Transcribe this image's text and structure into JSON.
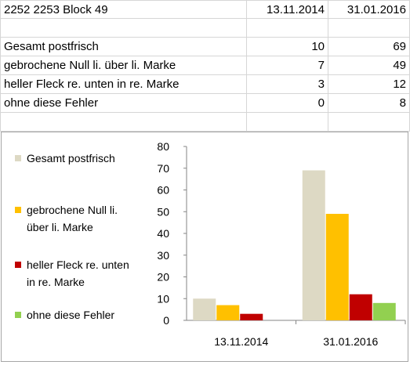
{
  "table": {
    "header": {
      "label": "2252 2253 Block 49",
      "date1": "13.11.2014",
      "date2": "31.01.2016"
    },
    "rows": [
      {
        "label": "Gesamt postfrisch",
        "v1": "10",
        "v2": "69"
      },
      {
        "label": "gebrochene Null li. über li. Marke",
        "v1": "7",
        "v2": "49"
      },
      {
        "label": "heller Fleck re. unten in re. Marke",
        "v1": "3",
        "v2": "12"
      },
      {
        "label": "ohne diese Fehler",
        "v1": "0",
        "v2": "8"
      }
    ]
  },
  "chart_data": {
    "type": "bar",
    "categories": [
      "13.11.2014",
      "31.01.2016"
    ],
    "series": [
      {
        "name": "Gesamt postfrisch",
        "values": [
          10,
          69
        ],
        "color": "#ddd9c4"
      },
      {
        "name": "gebrochene Null li. über li. Marke",
        "values": [
          7,
          49
        ],
        "color": "#ffc000"
      },
      {
        "name": "heller Fleck re. unten in re. Marke",
        "values": [
          3,
          12
        ],
        "color": "#c00000"
      },
      {
        "name": "ohne diese Fehler",
        "values": [
          0,
          8
        ],
        "color": "#92d050"
      }
    ],
    "legend_lines": [
      [
        "Gesamt postfrisch"
      ],
      [
        "gebrochene Null li.",
        "über li. Marke"
      ],
      [
        "heller Fleck re.",
        "unten in re. Marke"
      ],
      [
        "ohne diese Fehler"
      ]
    ],
    "ylim": [
      0,
      80
    ],
    "yticks": [
      "0",
      "10",
      "20",
      "30",
      "40",
      "50",
      "60",
      "70",
      "80"
    ],
    "legend_position": "left",
    "grid": false
  }
}
